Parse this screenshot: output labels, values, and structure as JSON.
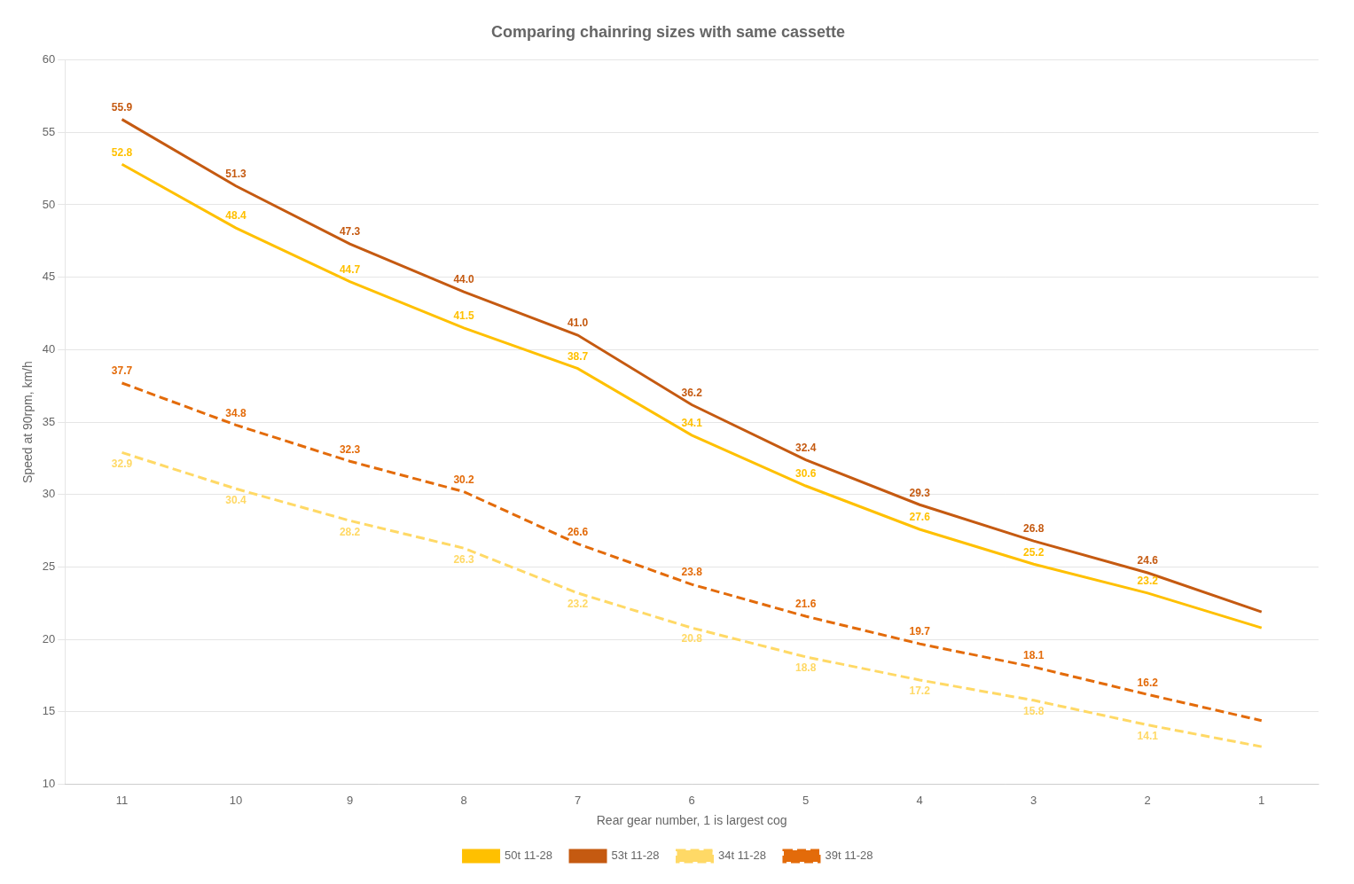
{
  "chart_data": {
    "type": "line",
    "title": "Comparing chainring sizes with same cassette",
    "xlabel": "Rear gear number, 1 is largest cog",
    "ylabel": "Speed at 90rpm, km/h",
    "x": [
      11,
      10,
      9,
      8,
      7,
      6,
      5,
      4,
      3,
      2,
      1
    ],
    "series": [
      {
        "name": "50t 11-28",
        "color": "#FFC000",
        "line_style": "solid",
        "values": [
          52.8,
          48.4,
          44.7,
          41.5,
          38.7,
          34.1,
          30.6,
          27.6,
          25.2,
          23.2,
          20.8
        ],
        "value_labels": [
          "52.8",
          "48.4",
          "44.7",
          "41.5",
          "38.7",
          "34.1",
          "30.6",
          "27.6",
          "25.2",
          "23.2",
          null
        ]
      },
      {
        "name": "53t 11-28",
        "color": "#C55A11",
        "line_style": "solid",
        "values": [
          55.9,
          51.3,
          47.3,
          44.0,
          41.0,
          36.2,
          32.4,
          29.3,
          26.8,
          24.6,
          21.9
        ],
        "value_labels": [
          "55.9",
          "51.3",
          "47.3",
          "44.0",
          "41.0",
          "36.2",
          "32.4",
          "29.3",
          "26.8",
          "24.6",
          null
        ]
      },
      {
        "name": "34t 11-28",
        "color": "#FFD966",
        "line_style": "dashed",
        "values": [
          32.9,
          30.4,
          28.2,
          26.3,
          23.2,
          20.8,
          18.8,
          17.2,
          15.8,
          14.1,
          12.6
        ],
        "value_labels": [
          "32.9",
          "30.4",
          "28.2",
          "26.3",
          "23.2",
          "20.8",
          "18.8",
          "17.2",
          "15.8",
          "14.1",
          null
        ]
      },
      {
        "name": "39t 11-28",
        "color": "#E36B0A",
        "line_style": "dashed",
        "values": [
          37.7,
          34.8,
          32.3,
          30.2,
          26.6,
          23.8,
          21.6,
          19.7,
          18.1,
          16.2,
          14.4
        ],
        "value_labels": [
          "37.7",
          "34.8",
          "32.3",
          "30.2",
          "26.6",
          "23.8",
          "21.6",
          "19.7",
          "18.1",
          "16.2",
          null
        ]
      }
    ],
    "xlim": [
      11.5,
      0.5
    ],
    "xticks": [
      11,
      10,
      9,
      8,
      7,
      6,
      5,
      4,
      3,
      2,
      1
    ],
    "ylim": [
      10,
      60
    ],
    "yticks": [
      10,
      15,
      20,
      25,
      30,
      35,
      40,
      45,
      50,
      55,
      60
    ],
    "grid": "y",
    "legend": "bottom",
    "data_labels": true
  }
}
